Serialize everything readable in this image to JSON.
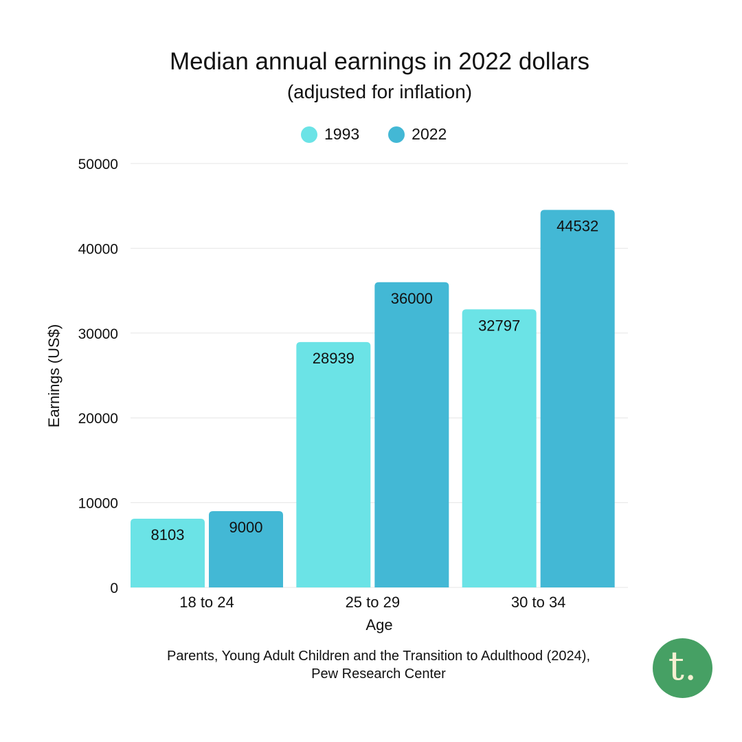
{
  "chart_data": {
    "type": "bar",
    "title": "Median annual earnings in 2022 dollars",
    "subtitle": "(adjusted for inflation)",
    "xlabel": "Age",
    "ylabel": "Earnings (US$)",
    "categories": [
      "18 to 24",
      "25 to 29",
      "30 to 34"
    ],
    "series": [
      {
        "name": "1993",
        "values": [
          8103,
          28939,
          32797
        ],
        "color": "#6be3e6"
      },
      {
        "name": "2022",
        "values": [
          9000,
          36000,
          44532
        ],
        "color": "#43b8d5"
      }
    ],
    "ylim": [
      0,
      50000
    ],
    "yticks": [
      0,
      10000,
      20000,
      30000,
      40000,
      50000
    ],
    "grid": true,
    "legend": "top-center"
  },
  "source": {
    "line1": "Parents, Young Adult Children and the Transition to Adulthood (2024),",
    "line2": "Pew Research Center"
  },
  "logo": {
    "letter": "t.",
    "color": "#46a064",
    "icon": "publisher-logo"
  }
}
